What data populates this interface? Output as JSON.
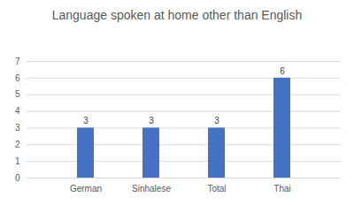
{
  "chart_data": {
    "type": "bar",
    "title": "Language spoken at home other than English",
    "categories": [
      "German",
      "Sinhalese",
      "Total",
      "Thai"
    ],
    "values": [
      3,
      3,
      3,
      6
    ],
    "color": "#4472c4",
    "ylim": [
      0,
      7
    ],
    "yticks": [
      0,
      1,
      2,
      3,
      4,
      5,
      6,
      7
    ],
    "grid": true,
    "data_labels": true
  }
}
